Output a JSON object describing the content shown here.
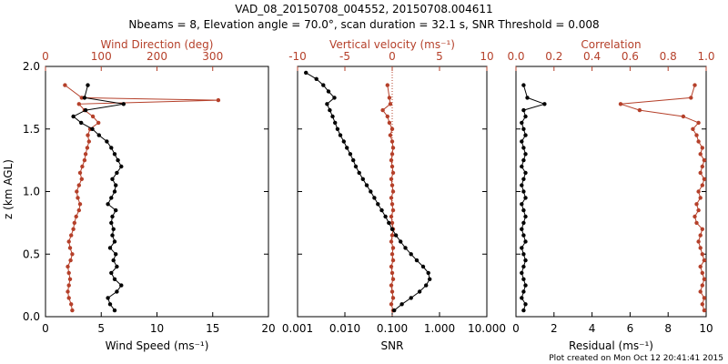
{
  "colors": {
    "black": "#000000",
    "red": "#b5402a",
    "bg": "#ffffff"
  },
  "chart_data": {
    "title_line1": "VAD_08_20150708_004552, 20150708.004611",
    "title_line2": "Nbeams = 8, Elevation angle = 70.0°, scan duration = 32.1 s, SNR Threshold = 0.008",
    "ylabel": "z (km AGL)",
    "ylim": [
      0,
      2
    ],
    "yticks": [
      "0.0",
      "0.5",
      "1.0",
      "1.5",
      "2.0"
    ],
    "credit": "Plot created on Mon Oct 12 20:41:41 2015",
    "panels": [
      {
        "name": "wind",
        "type": "line",
        "bottom_axis": {
          "label": "Wind Speed (ms⁻¹)",
          "range": [
            0,
            20
          ],
          "ticks": [
            "0",
            "5",
            "10",
            "15",
            "20"
          ]
        },
        "top_axis": {
          "label": "Wind Direction (deg)",
          "range": [
            0,
            400
          ],
          "ticks": [
            "0",
            "100",
            "200",
            "300"
          ]
        },
        "series": [
          {
            "name": "Wind Direction",
            "axis": "top",
            "color": "red",
            "z": [
              0.05,
              0.1,
              0.15,
              0.2,
              0.25,
              0.3,
              0.35,
              0.4,
              0.45,
              0.5,
              0.55,
              0.6,
              0.65,
              0.7,
              0.75,
              0.8,
              0.85,
              0.9,
              0.95,
              1.0,
              1.05,
              1.1,
              1.15,
              1.2,
              1.25,
              1.3,
              1.35,
              1.4,
              1.45,
              1.5,
              1.55,
              1.6,
              1.65,
              1.7,
              1.73,
              1.75,
              1.85
            ],
            "values": [
              48,
              46,
              42,
              40,
              42,
              44,
              42,
              40,
              45,
              48,
              44,
              42,
              46,
              50,
              52,
              55,
              60,
              62,
              58,
              56,
              60,
              65,
              62,
              66,
              70,
              72,
              75,
              78,
              76,
              80,
              95,
              85,
              70,
              60,
              310,
              65,
              35
            ]
          },
          {
            "name": "Wind Speed",
            "axis": "bottom",
            "color": "black",
            "z": [
              0.05,
              0.1,
              0.15,
              0.2,
              0.25,
              0.3,
              0.35,
              0.4,
              0.45,
              0.5,
              0.55,
              0.6,
              0.65,
              0.7,
              0.75,
              0.8,
              0.85,
              0.9,
              0.95,
              1.0,
              1.05,
              1.1,
              1.15,
              1.2,
              1.25,
              1.3,
              1.35,
              1.4,
              1.45,
              1.5,
              1.55,
              1.6,
              1.65,
              1.7,
              1.75,
              1.85
            ],
            "values": [
              6.2,
              5.8,
              5.6,
              6.4,
              6.8,
              6.2,
              5.9,
              6.4,
              6.1,
              6.3,
              5.8,
              6.2,
              6.0,
              6.1,
              5.9,
              6.0,
              6.3,
              5.6,
              5.9,
              6.2,
              6.3,
              6.0,
              6.4,
              6.8,
              6.5,
              6.2,
              5.9,
              5.5,
              4.8,
              4.2,
              3.2,
              2.5,
              3.6,
              7.0,
              3.5,
              3.8
            ]
          }
        ]
      },
      {
        "name": "vertical",
        "type": "line",
        "bottom_axis": {
          "label": "SNR",
          "scale": "log",
          "range": [
            0.001,
            10
          ],
          "ticks": [
            "0.001",
            "0.010",
            "0.100",
            "1.000",
            "10.000"
          ]
        },
        "top_axis": {
          "label": "Vertical velocity (ms⁻¹)",
          "range": [
            -10,
            10
          ],
          "ticks": [
            "-10",
            "-5",
            "0",
            "5",
            "10"
          ]
        },
        "series": [
          {
            "name": "Vertical velocity",
            "axis": "top",
            "color": "red",
            "z": [
              0.05,
              0.1,
              0.15,
              0.2,
              0.25,
              0.3,
              0.35,
              0.4,
              0.45,
              0.5,
              0.55,
              0.6,
              0.65,
              0.7,
              0.75,
              0.8,
              0.85,
              0.9,
              0.95,
              1.0,
              1.05,
              1.1,
              1.15,
              1.2,
              1.25,
              1.3,
              1.35,
              1.4,
              1.45,
              1.5,
              1.55,
              1.6,
              1.65,
              1.7,
              1.75,
              1.85
            ],
            "values": [
              0.1,
              -0.1,
              0.1,
              0.0,
              -0.1,
              0.1,
              0.0,
              -0.1,
              0.1,
              0.0,
              0.1,
              -0.1,
              0.0,
              0.1,
              0.0,
              -0.1,
              0.1,
              0.0,
              -0.1,
              0.1,
              0.0,
              -0.1,
              0.1,
              0.0,
              -0.1,
              0.0,
              0.1,
              0.0,
              -0.2,
              0.0,
              -0.3,
              -0.5,
              -1.0,
              -0.2,
              -0.3,
              -0.5
            ]
          },
          {
            "name": "SNR",
            "axis": "bottom",
            "color": "black",
            "z": [
              0.05,
              0.1,
              0.15,
              0.2,
              0.25,
              0.3,
              0.35,
              0.4,
              0.45,
              0.5,
              0.55,
              0.6,
              0.65,
              0.7,
              0.75,
              0.8,
              0.85,
              0.9,
              0.95,
              1.0,
              1.05,
              1.1,
              1.15,
              1.2,
              1.25,
              1.3,
              1.35,
              1.4,
              1.45,
              1.5,
              1.55,
              1.6,
              1.65,
              1.7,
              1.75,
              1.8,
              1.85,
              1.9,
              1.95
            ],
            "values": [
              0.11,
              0.16,
              0.25,
              0.38,
              0.52,
              0.62,
              0.58,
              0.45,
              0.33,
              0.25,
              0.19,
              0.15,
              0.12,
              0.1,
              0.085,
              0.072,
              0.06,
              0.05,
              0.042,
              0.035,
              0.029,
              0.024,
              0.02,
              0.017,
              0.015,
              0.013,
              0.011,
              0.0095,
              0.008,
              0.007,
              0.0062,
              0.0055,
              0.0048,
              0.0042,
              0.006,
              0.0045,
              0.0035,
              0.0025,
              0.0015
            ]
          }
        ]
      },
      {
        "name": "correlation",
        "type": "line",
        "bottom_axis": {
          "label": "Residual (ms⁻¹)",
          "range": [
            0,
            10
          ],
          "ticks": [
            "0",
            "2",
            "4",
            "6",
            "8",
            "10"
          ]
        },
        "top_axis": {
          "label": "Correlation",
          "range": [
            0,
            1
          ],
          "ticks": [
            "0.0",
            "0.2",
            "0.4",
            "0.6",
            "0.8",
            "1.0"
          ]
        },
        "series": [
          {
            "name": "Correlation",
            "axis": "top",
            "color": "red",
            "z": [
              0.05,
              0.1,
              0.15,
              0.2,
              0.25,
              0.3,
              0.35,
              0.4,
              0.45,
              0.5,
              0.55,
              0.6,
              0.65,
              0.7,
              0.75,
              0.8,
              0.85,
              0.9,
              0.95,
              1.0,
              1.05,
              1.1,
              1.15,
              1.2,
              1.25,
              1.3,
              1.35,
              1.4,
              1.45,
              1.5,
              1.55,
              1.6,
              1.65,
              1.7,
              1.75,
              1.85
            ],
            "values": [
              0.99,
              0.98,
              0.99,
              0.97,
              0.98,
              0.99,
              0.98,
              0.97,
              0.99,
              0.98,
              0.97,
              0.96,
              0.97,
              0.98,
              0.95,
              0.94,
              0.96,
              0.95,
              0.97,
              0.96,
              0.98,
              0.99,
              0.97,
              0.98,
              0.99,
              0.97,
              0.98,
              0.96,
              0.95,
              0.93,
              0.96,
              0.88,
              0.65,
              0.55,
              0.92,
              0.94
            ]
          },
          {
            "name": "Residual",
            "axis": "bottom",
            "color": "black",
            "z": [
              0.05,
              0.1,
              0.15,
              0.2,
              0.25,
              0.3,
              0.35,
              0.4,
              0.45,
              0.5,
              0.55,
              0.6,
              0.65,
              0.7,
              0.75,
              0.8,
              0.85,
              0.9,
              0.95,
              1.0,
              1.05,
              1.1,
              1.15,
              1.2,
              1.25,
              1.3,
              1.35,
              1.4,
              1.45,
              1.5,
              1.55,
              1.6,
              1.65,
              1.7,
              1.75,
              1.85
            ],
            "values": [
              0.4,
              0.5,
              0.3,
              0.4,
              0.5,
              0.4,
              0.3,
              0.4,
              0.5,
              0.4,
              0.3,
              0.5,
              0.4,
              0.3,
              0.4,
              0.5,
              0.4,
              0.3,
              0.5,
              0.4,
              0.3,
              0.4,
              0.5,
              0.3,
              0.4,
              0.5,
              0.4,
              0.3,
              0.5,
              0.4,
              0.3,
              0.5,
              0.4,
              1.5,
              0.6,
              0.4
            ]
          }
        ]
      }
    ]
  }
}
